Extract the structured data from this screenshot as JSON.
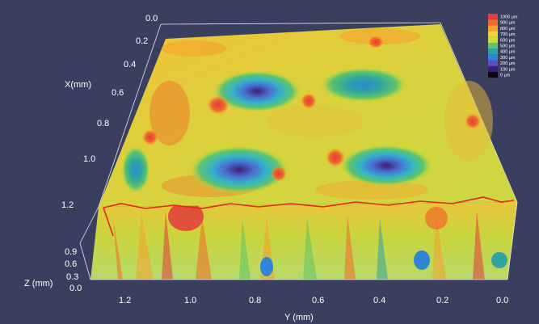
{
  "view": {
    "background": "#3a3f5f",
    "x_axis": {
      "label": "X(mm)",
      "ticks": [
        "0.0",
        "0.2",
        "0.4",
        "0.6",
        "0.8",
        "1.0",
        "1.2"
      ]
    },
    "y_axis": {
      "label": "Y (mm)",
      "ticks": [
        "1.2",
        "1.0",
        "0.8",
        "0.6",
        "0.4",
        "0.2",
        "0.0"
      ]
    },
    "z_axis": {
      "label": "Z (mm)",
      "ticks": [
        "0.9",
        "0.6",
        "0.3",
        "0.0"
      ]
    },
    "legend": {
      "placement": "top-right",
      "entries": [
        {
          "label": "1000 µm",
          "color": "#e23b3b"
        },
        {
          "label": "900 µm",
          "color": "#f06a2a"
        },
        {
          "label": "800 µm",
          "color": "#f7a12d"
        },
        {
          "label": "700 µm",
          "color": "#f2d33a"
        },
        {
          "label": "600 µm",
          "color": "#c9dc3c"
        },
        {
          "label": "500 µm",
          "color": "#5fc46a"
        },
        {
          "label": "400 µm",
          "color": "#2ea6a0"
        },
        {
          "label": "300 µm",
          "color": "#2f86d6"
        },
        {
          "label": "200 µm",
          "color": "#5a4fc8"
        },
        {
          "label": "100 µm",
          "color": "#3b1e7a"
        },
        {
          "label": "0 µm",
          "color": "#0a0a0a"
        }
      ]
    },
    "profile_line_color": "#e0261e"
  }
}
